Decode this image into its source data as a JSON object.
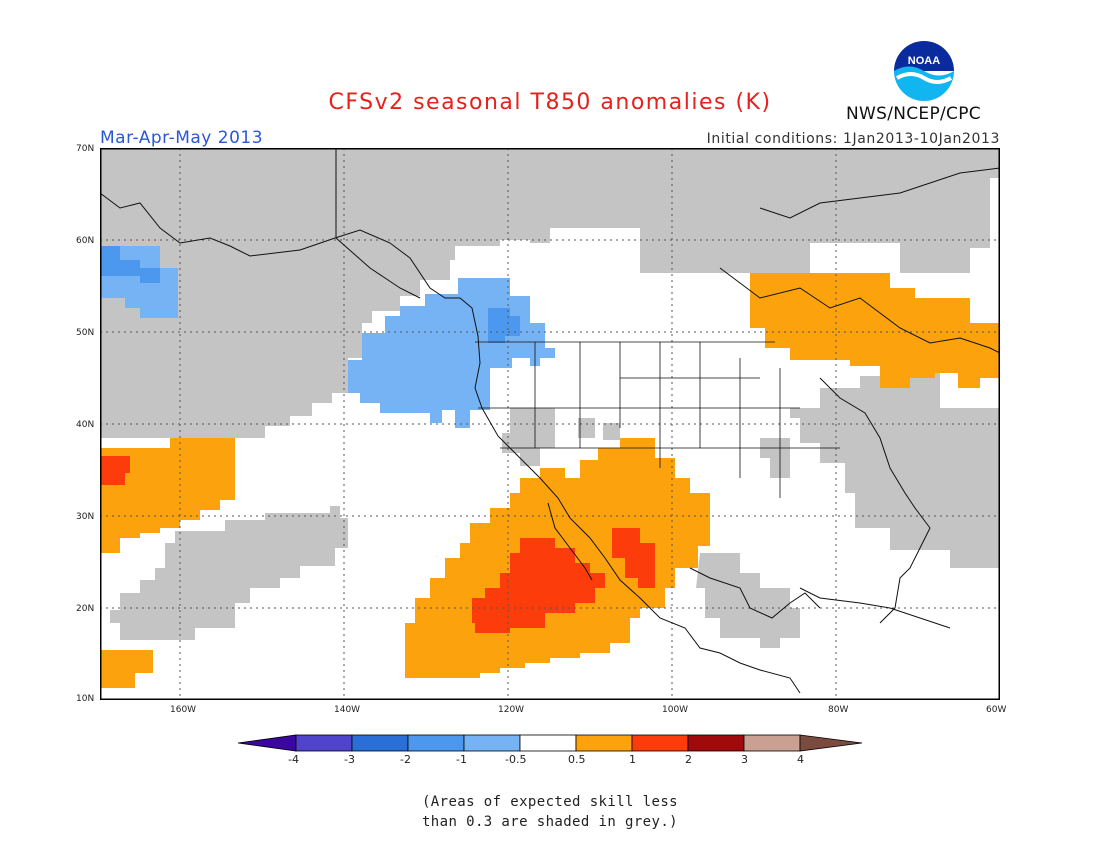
{
  "header": {
    "title": "CFSv2 seasonal T850 anomalies (K)",
    "season": "Mar-Apr-May 2013",
    "initial_conditions": "Initial conditions: 1Jan2013-10Jan2013",
    "agency": "NWS/NCEP/CPC",
    "logo_text": "NOAA"
  },
  "map": {
    "lat_labels": [
      "70N",
      "60N",
      "50N",
      "40N",
      "30N",
      "20N",
      "10N"
    ],
    "lon_labels": [
      "160W",
      "140W",
      "120W",
      "100W",
      "80W",
      "60W"
    ],
    "colors": {
      "grey": "#c4c4c4",
      "neg_0_5_1": "#76b3f4",
      "neg_1_2": "#4b98ee",
      "pos_0_5_1": "#fba20c",
      "pos_1_2": "#fc3d0b",
      "frame": "#000000"
    }
  },
  "colorbar": {
    "labels": [
      "-4",
      "-3",
      "-2",
      "-1",
      "-0.5",
      "0.5",
      "1",
      "2",
      "3",
      "4"
    ],
    "colors": [
      "#3c06a0",
      "#5044cc",
      "#2a6ed8",
      "#4b98ee",
      "#76b3f4",
      "#ffffff",
      "#fba20c",
      "#fc3d0b",
      "#a00a0a",
      "#c9a092",
      "#7a4b3e"
    ]
  },
  "footnote": {
    "line1": "(Areas of expected skill less",
    "line2": "than 0.3 are shaded in grey.)"
  }
}
